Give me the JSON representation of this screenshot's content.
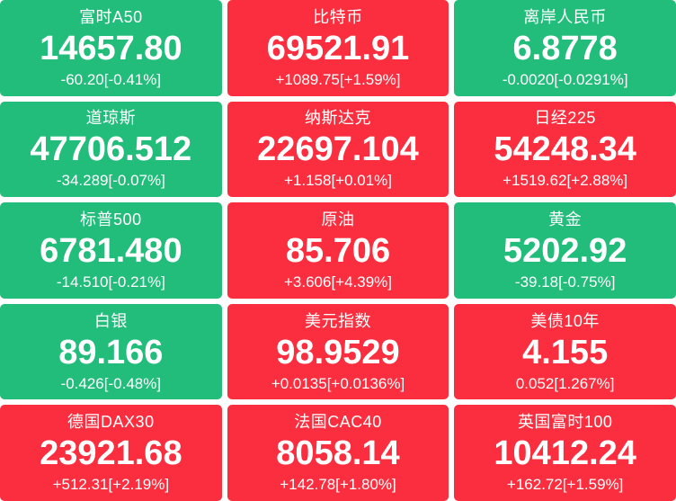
{
  "colors": {
    "up": "#fa2e3e",
    "down": "#22bc7b",
    "gap_background": "#ffffff",
    "text": "#ffffff"
  },
  "tiles": [
    {
      "name": "富时A50",
      "value": "14657.80",
      "change": "-60.20[-0.41%]",
      "direction": "down"
    },
    {
      "name": "比特币",
      "value": "69521.91",
      "change": "+1089.75[+1.59%]",
      "direction": "up"
    },
    {
      "name": "离岸人民币",
      "value": "6.8778",
      "change": "-0.0020[-0.0291%]",
      "direction": "down"
    },
    {
      "name": "道琼斯",
      "value": "47706.512",
      "change": "-34.289[-0.07%]",
      "direction": "down"
    },
    {
      "name": "纳斯达克",
      "value": "22697.104",
      "change": "+1.158[+0.01%]",
      "direction": "up"
    },
    {
      "name": "日经225",
      "value": "54248.34",
      "change": "+1519.62[+2.88%]",
      "direction": "up"
    },
    {
      "name": "标普500",
      "value": "6781.480",
      "change": "-14.510[-0.21%]",
      "direction": "down"
    },
    {
      "name": "原油",
      "value": "85.706",
      "change": "+3.606[+4.39%]",
      "direction": "up"
    },
    {
      "name": "黄金",
      "value": "5202.92",
      "change": "-39.18[-0.75%]",
      "direction": "down"
    },
    {
      "name": "白银",
      "value": "89.166",
      "change": "-0.426[-0.48%]",
      "direction": "down"
    },
    {
      "name": "美元指数",
      "value": "98.9529",
      "change": "+0.0135[+0.0136%]",
      "direction": "up"
    },
    {
      "name": "美债10年",
      "value": "4.155",
      "change": "0.052[1.267%]",
      "direction": "up"
    },
    {
      "name": "德国DAX30",
      "value": "23921.68",
      "change": "+512.31[+2.19%]",
      "direction": "up"
    },
    {
      "name": "法国CAC40",
      "value": "8058.14",
      "change": "+142.78[+1.80%]",
      "direction": "up"
    },
    {
      "name": "英国富时100",
      "value": "10412.24",
      "change": "+162.72[+1.59%]",
      "direction": "up"
    }
  ]
}
